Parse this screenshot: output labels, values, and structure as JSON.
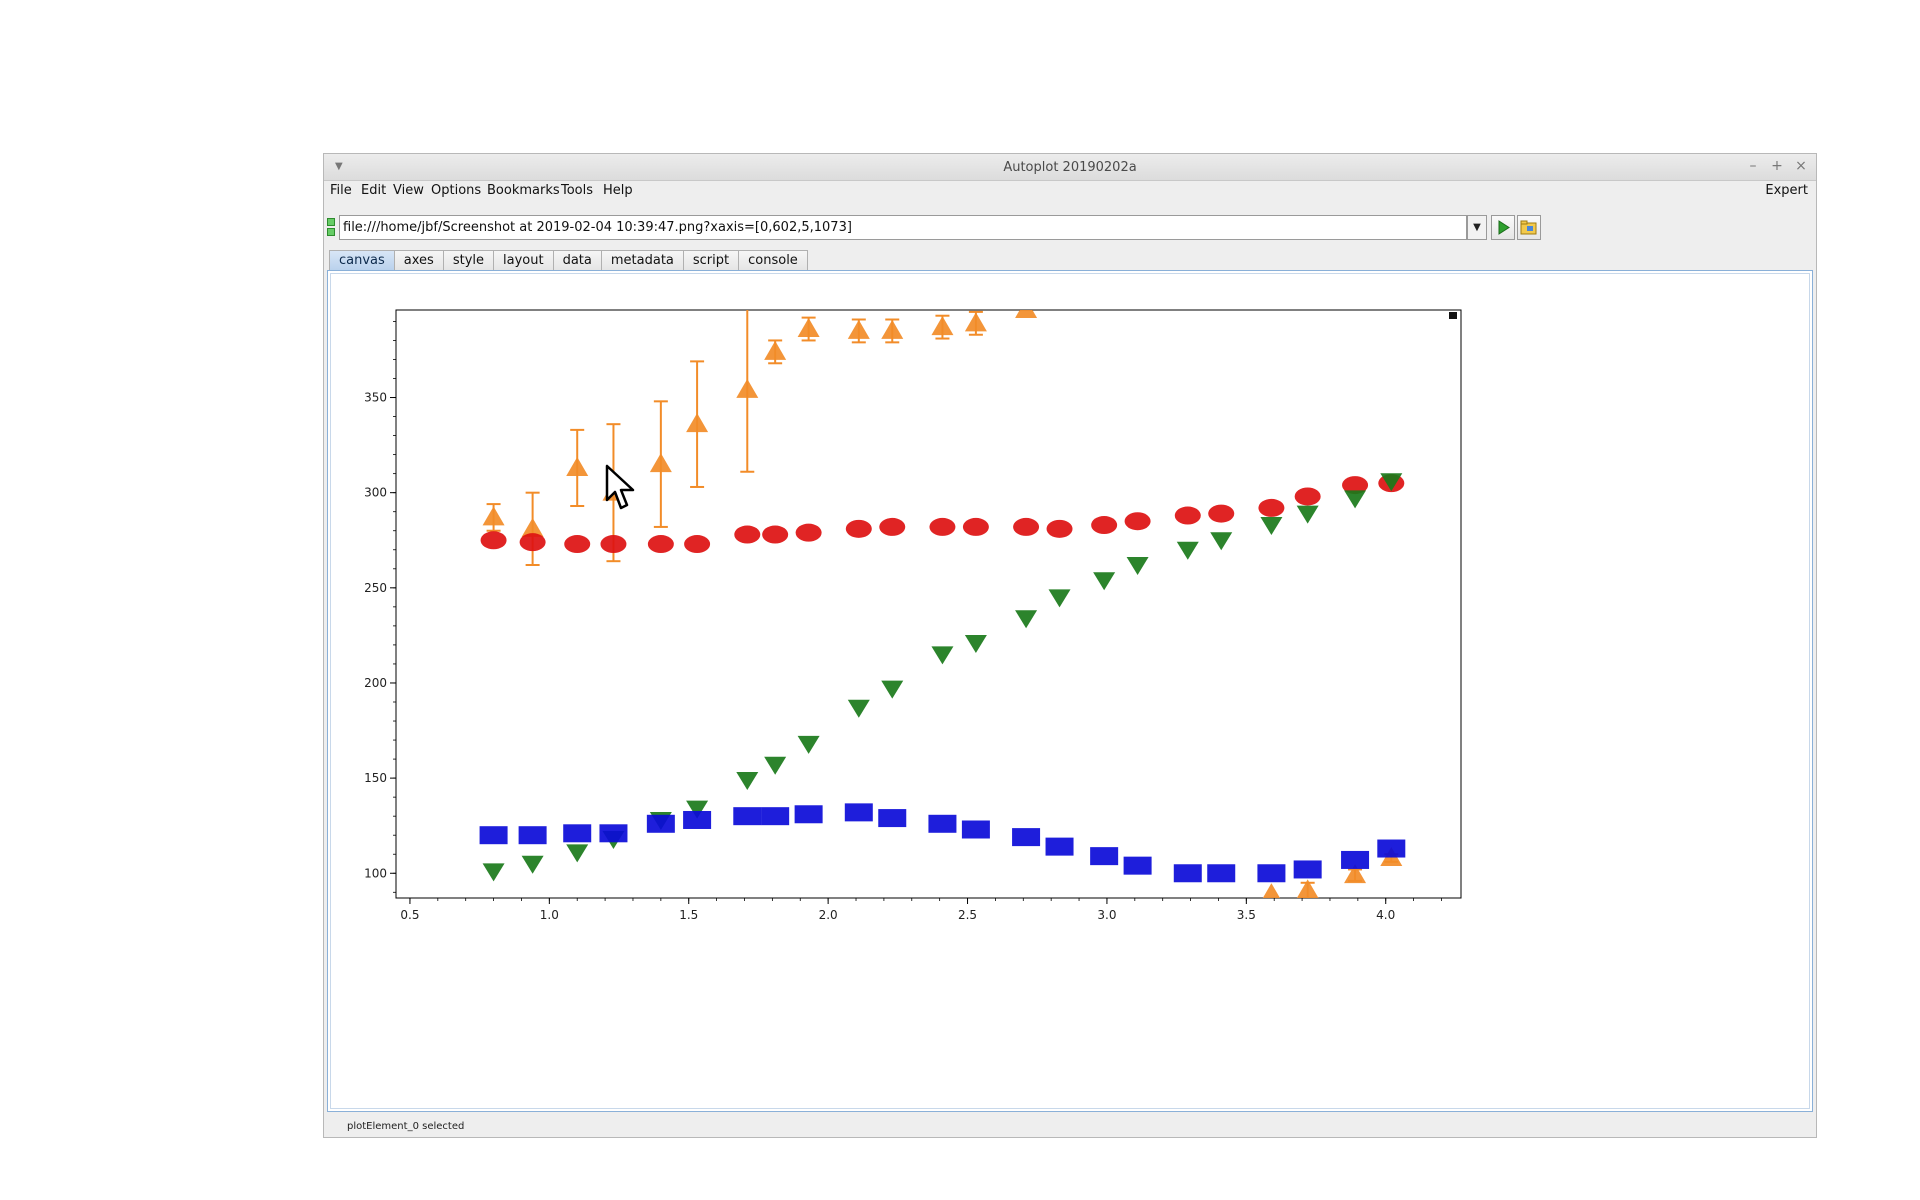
{
  "window": {
    "title": "Autoplot 20190202a"
  },
  "menubar": {
    "items": [
      "File",
      "Edit",
      "View",
      "Options",
      "Bookmarks",
      "Tools",
      "Help"
    ],
    "expert_label": "Expert"
  },
  "urlbar": {
    "value": "file:///home/jbf/Screenshot at 2019-02-04 10:39:47.png?xaxis=[0,602,5,1073]"
  },
  "tabs": [
    "canvas",
    "axes",
    "style",
    "layout",
    "data",
    "metadata",
    "script",
    "console"
  ],
  "active_tab": "canvas",
  "status": {
    "text": "plotElement_0 selected"
  },
  "icons": {
    "window_menu": "chevron-down-icon",
    "minimize": "minimize-icon",
    "maximize": "maximize-icon",
    "close": "close-icon",
    "run": "play-icon",
    "open": "folder-icon",
    "cursor": "mouse-pointer-icon"
  },
  "chart_data": {
    "type": "scatter",
    "xlim": [
      0.45,
      4.27
    ],
    "ylim": [
      87,
      396
    ],
    "x_ticks": [
      "0.5",
      "1.0",
      "1.5",
      "2.0",
      "2.5",
      "3.0",
      "3.5",
      "4.0"
    ],
    "y_ticks": [
      "100",
      "150",
      "200",
      "250",
      "300",
      "350"
    ],
    "grid": false,
    "series": [
      {
        "color": "#f28c28",
        "marker": "triangle-up",
        "x": [
          0.8,
          0.94,
          1.1,
          1.23,
          1.4,
          1.53,
          1.71,
          1.81,
          1.93,
          2.11,
          2.23,
          2.41,
          2.53,
          2.71,
          3.59,
          3.72,
          3.89,
          4.02
        ],
        "y": [
          287,
          281,
          313,
          300,
          315,
          336,
          354,
          374,
          386,
          385,
          385,
          387,
          389,
          396,
          89,
          91,
          99,
          108
        ],
        "err": [
          7,
          19,
          20,
          36,
          33,
          33,
          43,
          6,
          6,
          6,
          6,
          6,
          6,
          0,
          0,
          4,
          3,
          2
        ]
      },
      {
        "color": "#dd1111",
        "marker": "circle",
        "x": [
          0.8,
          0.94,
          1.1,
          1.23,
          1.4,
          1.53,
          1.71,
          1.81,
          1.93,
          2.11,
          2.23,
          2.41,
          2.53,
          2.71,
          2.83,
          2.99,
          3.11,
          3.29,
          3.41,
          3.59,
          3.72,
          3.89,
          4.02
        ],
        "y": [
          275,
          274,
          273,
          273,
          273,
          273,
          278,
          278,
          279,
          281,
          282,
          282,
          282,
          282,
          281,
          283,
          285,
          288,
          289,
          292,
          298,
          304,
          305
        ]
      },
      {
        "color": "#1a7a1a",
        "marker": "triangle-down",
        "x": [
          0.8,
          0.94,
          1.1,
          1.23,
          1.4,
          1.53,
          1.71,
          1.81,
          1.93,
          2.11,
          2.23,
          2.41,
          2.53,
          2.71,
          2.83,
          2.99,
          3.11,
          3.29,
          3.41,
          3.59,
          3.72,
          3.89,
          4.02
        ],
        "y": [
          101,
          105,
          111,
          118,
          128,
          134,
          149,
          157,
          168,
          187,
          197,
          215,
          221,
          234,
          245,
          254,
          262,
          270,
          275,
          283,
          289,
          297,
          306
        ]
      },
      {
        "color": "#0b0bd8",
        "marker": "square",
        "x": [
          0.8,
          0.94,
          1.1,
          1.23,
          1.4,
          1.53,
          1.71,
          1.81,
          1.93,
          2.11,
          2.23,
          2.41,
          2.53,
          2.71,
          2.83,
          2.99,
          3.11,
          3.29,
          3.41,
          3.59,
          3.72,
          3.89,
          4.02
        ],
        "y": [
          120,
          120,
          121,
          121,
          126,
          128,
          130,
          130,
          131,
          132,
          129,
          126,
          123,
          119,
          114,
          109,
          104,
          100,
          100,
          100,
          102,
          107,
          113
        ]
      }
    ]
  }
}
